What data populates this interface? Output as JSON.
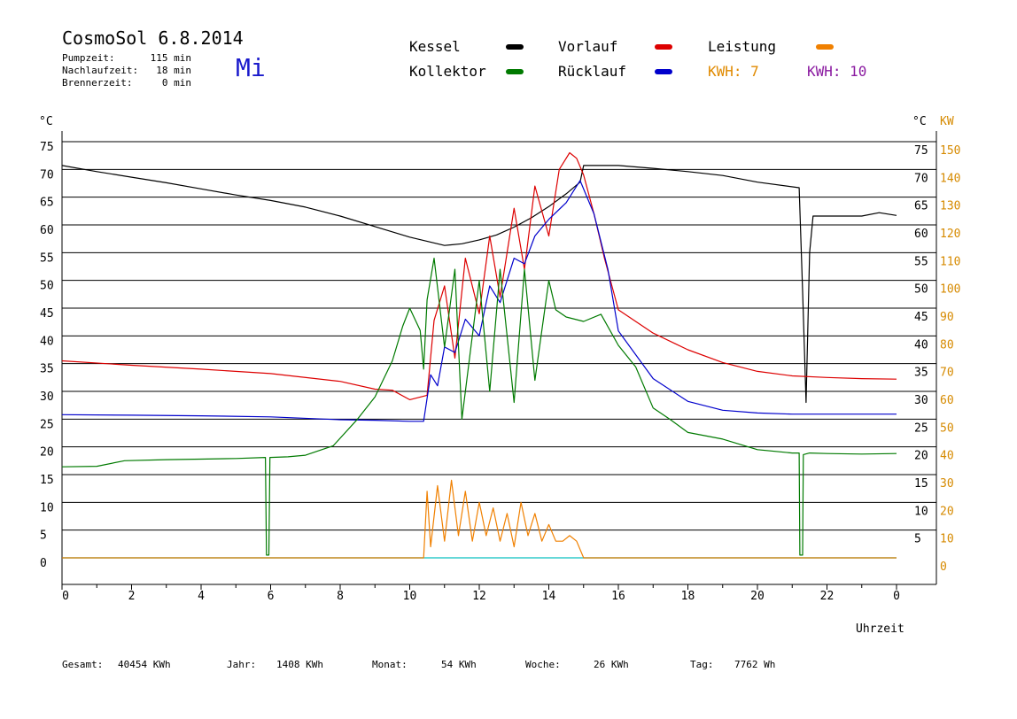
{
  "header": {
    "title": "CosmoSol 6.8.2014",
    "day": "Mi",
    "stats": [
      {
        "label": "Pumpzeit:",
        "value": "115 min"
      },
      {
        "label": "Nachlaufzeit:",
        "value": "18 min"
      },
      {
        "label": "Brennerzeit:",
        "value": "0 min"
      }
    ]
  },
  "legend": [
    {
      "label": "Kessel",
      "color": "#000000"
    },
    {
      "label": "Vorlauf",
      "color": "#dd0000"
    },
    {
      "label": "Leistung",
      "color": "#f08000"
    },
    {
      "label": "Kollektor",
      "color": "#007a00"
    },
    {
      "label": "Rücklauf",
      "color": "#0000cc"
    }
  ],
  "kwh": [
    {
      "text": "KWH: 7",
      "color": "#e08a00"
    },
    {
      "text": "KWH: 10",
      "color": "#8a1aa0"
    }
  ],
  "footer": [
    {
      "label": "Gesamt:",
      "value": "40454 KWh"
    },
    {
      "label": "Jahr:",
      "value": "1408 KWh"
    },
    {
      "label": "Monat:",
      "value": "54 KWh"
    },
    {
      "label": "Woche:",
      "value": "26 KWh"
    },
    {
      "label": "Tag:",
      "value": "7762 Wh"
    }
  ],
  "chart_data": {
    "type": "line",
    "xlabel": "Uhrzeit",
    "ylabel_left": "°C",
    "ylabel_right_c": "°C",
    "ylabel_right_kw": "KW",
    "xlim": [
      0,
      24
    ],
    "ylim": [
      0,
      75
    ],
    "xticks": [
      "0",
      "2",
      "4",
      "6",
      "8",
      "10",
      "12",
      "14",
      "16",
      "18",
      "20",
      "22",
      "0"
    ],
    "yticks_left": [
      "0",
      "5",
      "10",
      "15",
      "20",
      "25",
      "30",
      "35",
      "40",
      "45",
      "50",
      "55",
      "60",
      "65",
      "70",
      "75"
    ],
    "yticks_right_c": [
      "5",
      "10",
      "15",
      "20",
      "25",
      "30",
      "35",
      "40",
      "45",
      "50",
      "55",
      "60",
      "65",
      "70",
      "75"
    ],
    "yticks_right_kw": [
      "0",
      "10",
      "20",
      "30",
      "40",
      "50",
      "60",
      "70",
      "80",
      "90",
      "100",
      "110",
      "120",
      "130",
      "140",
      "150"
    ],
    "grid": true,
    "series": [
      {
        "name": "Kessel",
        "color": "#000000",
        "x": [
          0,
          1,
          2,
          3,
          4,
          5,
          6,
          7,
          8,
          9,
          10,
          11,
          11.5,
          12,
          12.5,
          13,
          13.5,
          14,
          14.5,
          14.9,
          15,
          16,
          17,
          18,
          19,
          20,
          21.2,
          21.3,
          21.4,
          21.5,
          21.6,
          22,
          23,
          23.5,
          24
        ],
        "y": [
          70.7,
          69.6,
          68.6,
          67.6,
          66.5,
          65.4,
          64.4,
          63.2,
          61.6,
          59.7,
          57.8,
          56.3,
          56.6,
          57.3,
          58.2,
          59.6,
          61.3,
          63.3,
          65.6,
          67.7,
          70.7,
          70.7,
          70.2,
          69.6,
          68.9,
          67.7,
          66.7,
          48,
          28,
          55,
          61.6,
          61.6,
          61.6,
          62.2,
          61.7
        ]
      },
      {
        "name": "Vorlauf",
        "color": "#dd0000",
        "x": [
          0,
          2,
          4,
          6,
          8,
          9,
          9.5,
          10,
          10.5,
          10.7,
          11,
          11.3,
          11.6,
          12,
          12.3,
          12.6,
          13,
          13.3,
          13.6,
          14,
          14.3,
          14.6,
          14.8,
          15,
          15.3,
          15.6,
          16,
          17,
          18,
          19,
          20,
          21,
          22,
          23,
          24
        ],
        "y": [
          35.5,
          34.7,
          34,
          33.2,
          31.8,
          30.4,
          30.2,
          28.5,
          29.3,
          42.8,
          49,
          36,
          54,
          44,
          58,
          47,
          63,
          52,
          67,
          58,
          70,
          73,
          72,
          69,
          62,
          54,
          44.7,
          40.5,
          37.5,
          35.2,
          33.6,
          32.8,
          32.5,
          32.3,
          32.2
        ]
      },
      {
        "name": "Rücklauf",
        "color": "#0000cc",
        "x": [
          0,
          2,
          4,
          6,
          8,
          9,
          10,
          10.4,
          10.6,
          10.8,
          11,
          11.3,
          11.6,
          12,
          12.3,
          12.6,
          13,
          13.3,
          13.6,
          14,
          14.5,
          14.9,
          15.3,
          15.7,
          16,
          17,
          18,
          19,
          20,
          21,
          22,
          24
        ],
        "y": [
          25.8,
          25.7,
          25.6,
          25.4,
          24.9,
          24.8,
          24.6,
          24.6,
          33,
          31,
          38,
          37,
          43,
          40,
          49,
          46,
          54,
          53,
          58,
          61,
          64,
          68,
          62,
          52,
          40.9,
          32.3,
          28.2,
          26.6,
          26.1,
          25.9,
          25.9,
          25.9
        ]
      },
      {
        "name": "Kollektor",
        "color": "#007a00",
        "x": [
          0,
          1,
          1.8,
          3,
          4,
          5,
          5.85,
          5.88,
          5.95,
          5.98,
          6.5,
          7,
          7.8,
          8.5,
          9,
          9.5,
          9.8,
          10,
          10.3,
          10.4,
          10.5,
          10.7,
          11,
          11.3,
          11.5,
          12,
          12.3,
          12.6,
          13,
          13.3,
          13.6,
          14,
          14.2,
          14.5,
          15,
          15.5,
          16,
          16.5,
          17,
          17.5,
          18,
          19,
          20,
          21,
          21.2,
          21.22,
          21.3,
          21.32,
          21.5,
          22,
          23,
          24
        ],
        "y": [
          16.4,
          16.5,
          17.5,
          17.7,
          17.8,
          17.9,
          18.1,
          0.5,
          0.5,
          18.1,
          18.2,
          18.5,
          20.2,
          25,
          29,
          35.5,
          41.8,
          45,
          41,
          34,
          46.5,
          54,
          38,
          52,
          25,
          50,
          30,
          52,
          28,
          52,
          32,
          50,
          44.7,
          43.4,
          42.6,
          43.9,
          38.3,
          34.4,
          27,
          24.9,
          22.6,
          21.4,
          19.5,
          18.9,
          18.9,
          0.5,
          0.5,
          18.6,
          18.9,
          18.8,
          18.7,
          18.8
        ]
      },
      {
        "name": "Leistung",
        "color": "#f08000",
        "x": [
          0,
          10.4,
          10.5,
          10.6,
          10.8,
          11,
          11.2,
          11.4,
          11.6,
          11.8,
          12,
          12.2,
          12.4,
          12.6,
          12.8,
          13,
          13.2,
          13.4,
          13.6,
          13.8,
          14,
          14.2,
          14.4,
          14.6,
          14.8,
          15,
          24
        ],
        "y": [
          0,
          0,
          12,
          2,
          13,
          3,
          14,
          4,
          12,
          3,
          10,
          4,
          9,
          3,
          8,
          2,
          10,
          4,
          8,
          3,
          6,
          3,
          3,
          4,
          3,
          0,
          0
        ]
      }
    ]
  }
}
